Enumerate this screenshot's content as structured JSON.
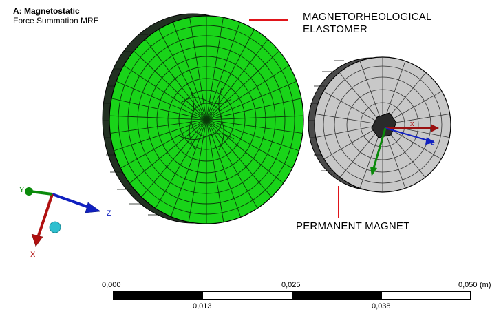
{
  "header": {
    "analysis_title": "A: Magnetostatic",
    "result_name": "Force Summation MRE"
  },
  "callouts": {
    "mre_label_line1": "MAGNETORHEOLOGICAL",
    "mre_label_line2": "ELASTOMER",
    "magnet_label": "PERMANENT MAGNET"
  },
  "triad": {
    "x_label": "X",
    "y_label": "Y",
    "z_label": "Z"
  },
  "local_axes": {
    "x_label": "x",
    "z_label": "z"
  },
  "scale_bar": {
    "tick_top": [
      "0,000",
      "0,025",
      "0,050"
    ],
    "unit": "(m)",
    "tick_bottom": [
      "0,013",
      "0,038"
    ]
  },
  "colors": {
    "mre_face": "#19d419",
    "mre_side": "#2c3a2c",
    "magnet_face": "#c8c8c8",
    "magnet_side": "#505050",
    "callout_leader": "#e0141a",
    "axis_x": "#b01010",
    "axis_y": "#0a8a0a",
    "axis_z": "#1020c0"
  }
}
